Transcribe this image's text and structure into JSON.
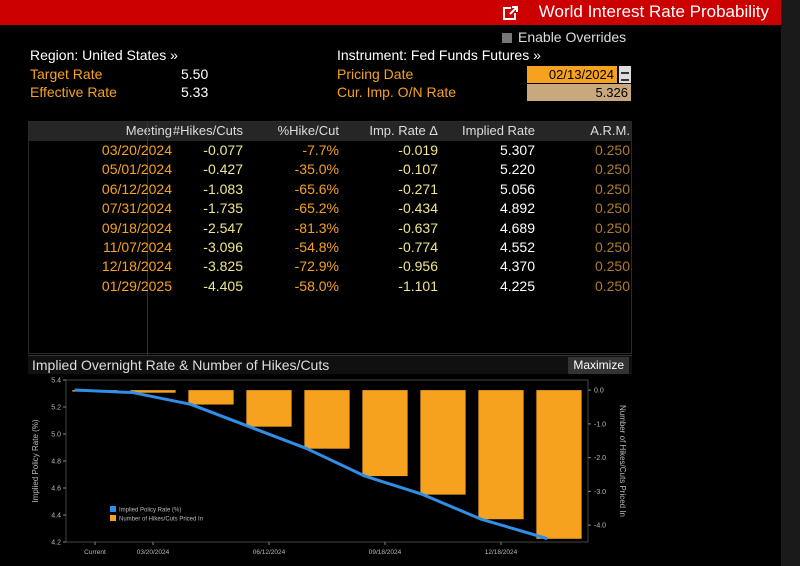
{
  "window": {
    "title": "World Interest Rate Probability",
    "enable_overrides_label": "Enable Overrides"
  },
  "info": {
    "region": "Region: United States »",
    "target_rate_label": "Target Rate",
    "target_rate_value": "5.50",
    "effective_rate_label": "Effective Rate",
    "effective_rate_value": "5.33",
    "instrument": "Instrument: Fed Funds Futures »",
    "pricing_date_label": "Pricing Date",
    "pricing_date_value": "02/13/2024",
    "cur_imp_label": "Cur. Imp. O/N Rate",
    "cur_imp_value": "5.326"
  },
  "table": {
    "headers": [
      "Meeting",
      "#Hikes/Cuts",
      "%Hike/Cut",
      "Imp. Rate Δ",
      "Implied Rate",
      "A.R.M."
    ],
    "rows": [
      {
        "meeting": "03/20/2024",
        "hikes": "-0.077",
        "pct": "-7.7%",
        "delta": "-0.019",
        "implied": "5.307",
        "arm": "0.250"
      },
      {
        "meeting": "05/01/2024",
        "hikes": "-0.427",
        "pct": "-35.0%",
        "delta": "-0.107",
        "implied": "5.220",
        "arm": "0.250"
      },
      {
        "meeting": "06/12/2024",
        "hikes": "-1.083",
        "pct": "-65.6%",
        "delta": "-0.271",
        "implied": "5.056",
        "arm": "0.250"
      },
      {
        "meeting": "07/31/2024",
        "hikes": "-1.735",
        "pct": "-65.2%",
        "delta": "-0.434",
        "implied": "4.892",
        "arm": "0.250"
      },
      {
        "meeting": "09/18/2024",
        "hikes": "-2.547",
        "pct": "-81.3%",
        "delta": "-0.637",
        "implied": "4.689",
        "arm": "0.250"
      },
      {
        "meeting": "11/07/2024",
        "hikes": "-3.096",
        "pct": "-54.8%",
        "delta": "-0.774",
        "implied": "4.552",
        "arm": "0.250"
      },
      {
        "meeting": "12/18/2024",
        "hikes": "-3.825",
        "pct": "-72.9%",
        "delta": "-0.956",
        "implied": "4.370",
        "arm": "0.250"
      },
      {
        "meeting": "01/29/2025",
        "hikes": "-4.405",
        "pct": "-58.0%",
        "delta": "-1.101",
        "implied": "4.225",
        "arm": "0.250"
      }
    ]
  },
  "chart_panel": {
    "title": "Implied Overnight Rate & Number of Hikes/Cuts",
    "maximize_label": "Maximize"
  },
  "chart_data": {
    "type": "bar",
    "categories": [
      "Current",
      "03/20/2024",
      "05/01/2024",
      "06/12/2024",
      "07/31/2024",
      "09/18/2024",
      "11/07/2024",
      "12/18/2024",
      "01/29/2025"
    ],
    "x_tick_labels": [
      "Current",
      "03/20/2024",
      "06/12/2024",
      "09/18/2024",
      "12/18/2024"
    ],
    "series": [
      {
        "name": "Implied Policy Rate (%)",
        "type": "line",
        "axis": "left",
        "color": "#2f8fe6",
        "values": [
          5.326,
          5.307,
          5.22,
          5.056,
          4.892,
          4.689,
          4.552,
          4.37,
          4.225
        ]
      },
      {
        "name": "Number of Hikes/Cuts Priced In",
        "type": "bar",
        "axis": "right",
        "color": "#f6a21e",
        "values": [
          0.0,
          -0.077,
          -0.427,
          -1.083,
          -1.735,
          -2.547,
          -3.096,
          -3.825,
          -4.405
        ]
      }
    ],
    "ylabel": "Implied Policy Rate (%)",
    "ylabel_right": "Number of Hikes/Cuts Priced In",
    "ylim": [
      4.2,
      5.4
    ],
    "yticks": [
      "5.4",
      "5.2",
      "5.0",
      "4.8",
      "4.6",
      "4.4",
      "4.2"
    ],
    "ylim_right": [
      -4.5,
      0.3
    ],
    "yticks_right": [
      "0.0",
      "-1.0",
      "-2.0",
      "-3.0",
      "-4.0"
    ],
    "legend_position": "bottom-left",
    "grid": false
  },
  "colors": {
    "title_bar": "#cc0000",
    "accent_orange": "#f6a21e",
    "line_blue": "#2f8fe6",
    "table_yellow": "#f0e68c"
  },
  "icons": {
    "title": "external-link-icon",
    "date_picker": "calendar-icon"
  }
}
